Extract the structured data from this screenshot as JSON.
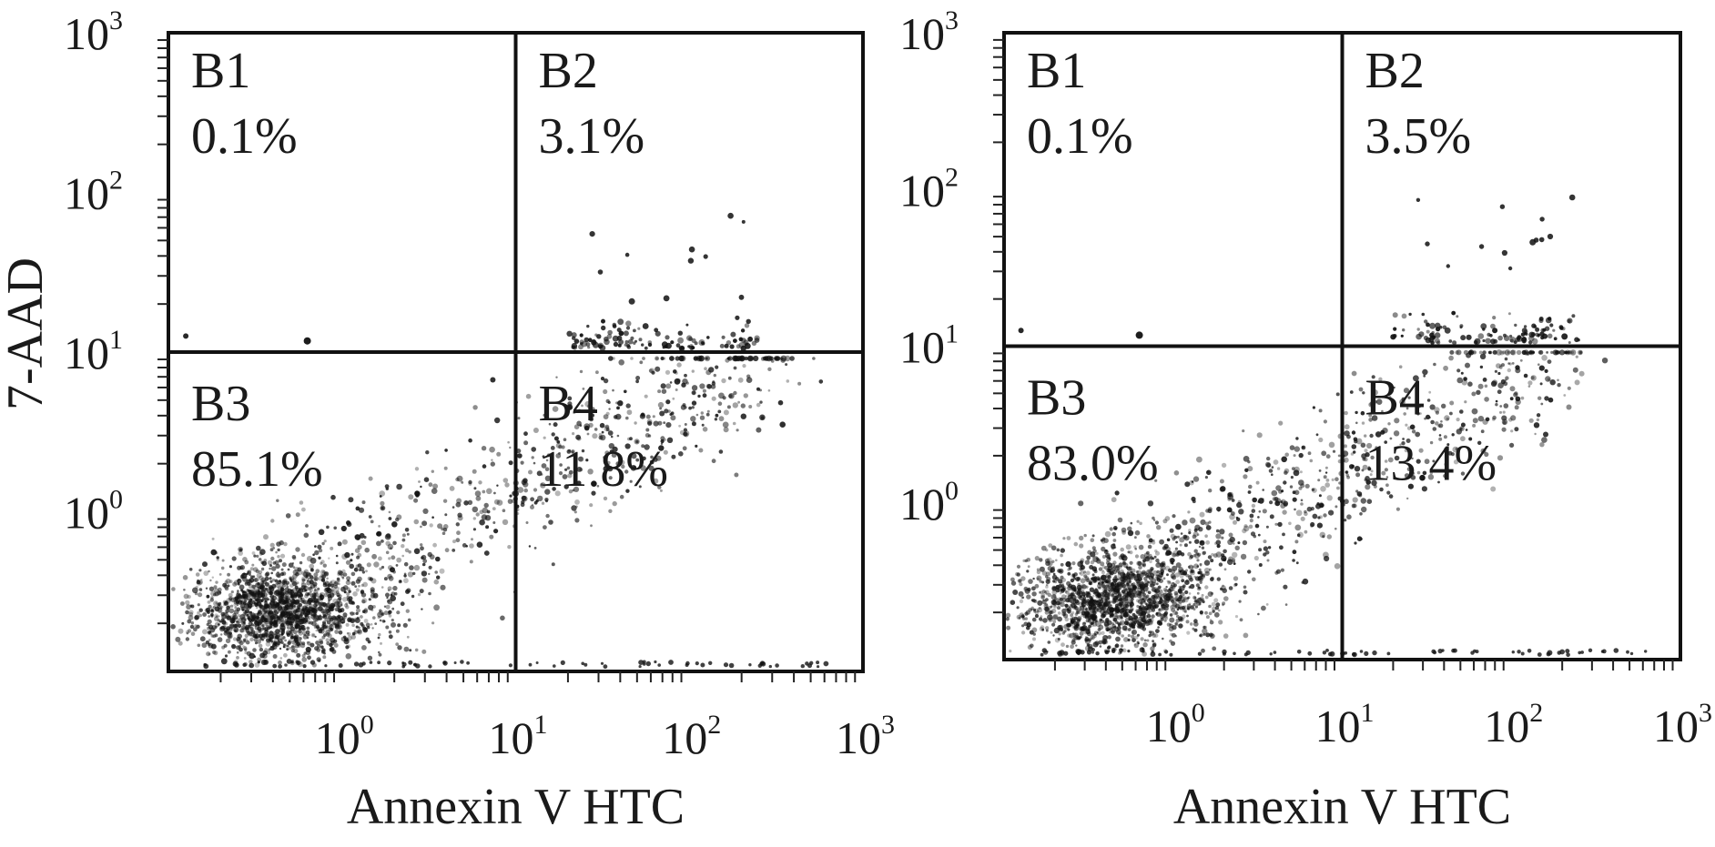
{
  "chart_data": [
    {
      "type": "scatter",
      "xlabel": "Annexin V HTC",
      "ylabel": "7-AAD",
      "xscale": "log",
      "yscale": "log",
      "xlim": [
        0.1,
        1000
      ],
      "ylim": [
        0.1,
        1000
      ],
      "xticks": [
        {
          "base": "10",
          "exp": "0"
        },
        {
          "base": "10",
          "exp": "1"
        },
        {
          "base": "10",
          "exp": "2"
        },
        {
          "base": "10",
          "exp": "3"
        }
      ],
      "yticks": [
        {
          "base": "10",
          "exp": "0"
        },
        {
          "base": "10",
          "exp": "1"
        },
        {
          "base": "10",
          "exp": "2"
        },
        {
          "base": "10",
          "exp": "3"
        }
      ],
      "gate": {
        "x": 10,
        "y": 10
      },
      "quadrants": [
        {
          "name": "B1",
          "percent": "0.1%"
        },
        {
          "name": "B2",
          "percent": "3.1%"
        },
        {
          "name": "B3",
          "percent": "85.1%"
        },
        {
          "name": "B4",
          "percent": "11.8%"
        }
      ]
    },
    {
      "type": "scatter",
      "xlabel": "Annexin V HTC",
      "ylabel": "",
      "xscale": "log",
      "yscale": "log",
      "xlim": [
        0.1,
        1000
      ],
      "ylim": [
        0.1,
        1000
      ],
      "xticks": [
        {
          "base": "10",
          "exp": "0"
        },
        {
          "base": "10",
          "exp": "1"
        },
        {
          "base": "10",
          "exp": "2"
        },
        {
          "base": "10",
          "exp": "3"
        }
      ],
      "yticks": [
        {
          "base": "10",
          "exp": "0"
        },
        {
          "base": "10",
          "exp": "1"
        },
        {
          "base": "10",
          "exp": "2"
        },
        {
          "base": "10",
          "exp": "3"
        }
      ],
      "gate": {
        "x": 10,
        "y": 10
      },
      "quadrants": [
        {
          "name": "B1",
          "percent": "0.1%"
        },
        {
          "name": "B2",
          "percent": "3.5%"
        },
        {
          "name": "B3",
          "percent": "83.0%"
        },
        {
          "name": "B4",
          "percent": "13.4%"
        }
      ]
    }
  ]
}
